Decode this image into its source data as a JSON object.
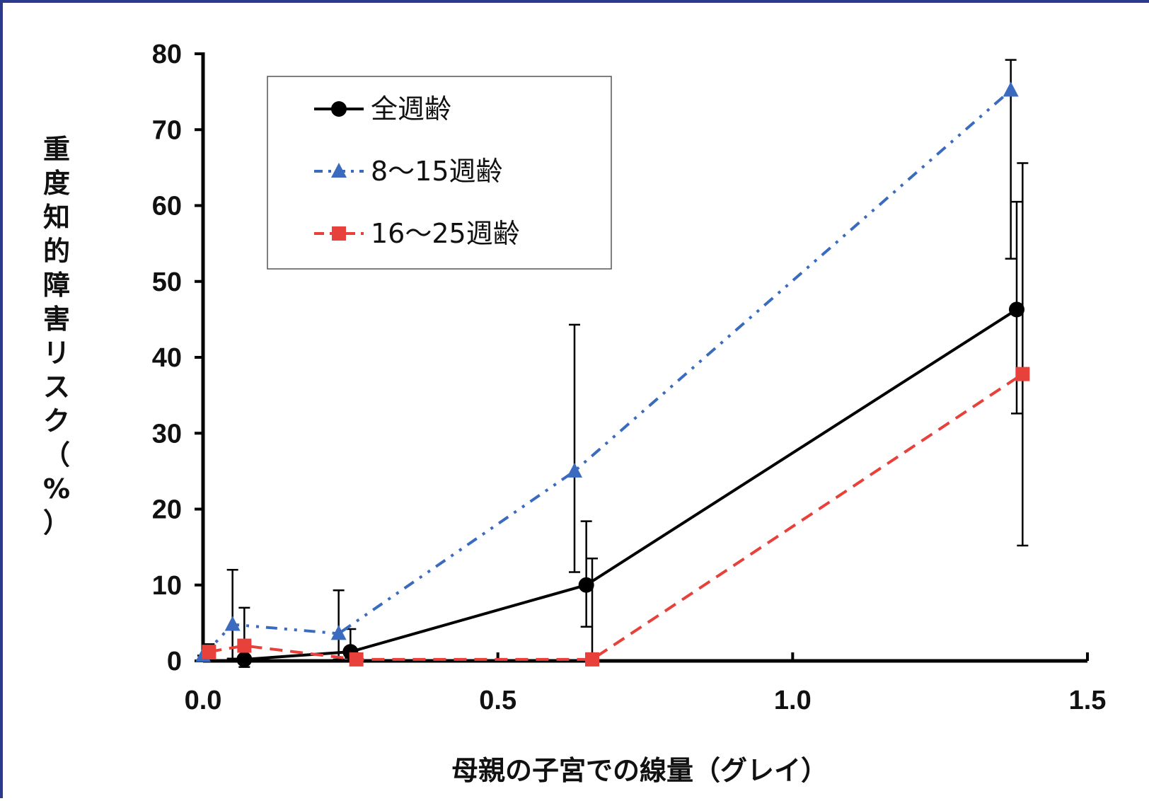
{
  "chart_data": {
    "type": "line",
    "xlabel": "母親の子宮での線量（グレイ）",
    "ylabel": "重度知的障害リスク（%）",
    "xlim": [
      0.0,
      1.5
    ],
    "ylim": [
      0,
      80
    ],
    "xticks": [
      "0.0",
      "0.5",
      "1.0",
      "1.5"
    ],
    "yticks": [
      "0",
      "10",
      "20",
      "30",
      "40",
      "50",
      "60",
      "70",
      "80"
    ],
    "legend_position": "top-left",
    "grid": false,
    "series": [
      {
        "name": "全週齢",
        "color": "#000000",
        "marker": "circle",
        "line_style": "solid",
        "x": [
          0.07,
          0.25,
          0.65,
          1.38
        ],
        "y": [
          0.2,
          1.2,
          10.0,
          46.3
        ],
        "err_low": [
          -0.8,
          0.4,
          4.5,
          32.6
        ],
        "err_high": [
          1.5,
          4.2,
          18.4,
          60.5
        ]
      },
      {
        "name": "8～15週齢",
        "color": "#3a6bbf",
        "marker": "triangle",
        "line_style": "dashdotdot",
        "x": [
          0.0,
          0.05,
          0.23,
          0.63,
          1.37
        ],
        "y": [
          0.7,
          4.8,
          3.6,
          25.0,
          75.2
        ],
        "err_low": [
          0.7,
          0.3,
          0.2,
          11.7,
          53.0
        ],
        "err_high": [
          0.7,
          12.0,
          9.3,
          44.3,
          79.2
        ]
      },
      {
        "name": "16～25週齢",
        "color": "#e8403a",
        "marker": "square",
        "line_style": "dashed",
        "x": [
          0.01,
          0.07,
          0.26,
          0.66,
          1.39
        ],
        "y": [
          1.2,
          2.0,
          0.2,
          0.2,
          37.8
        ],
        "err_low": [
          0.4,
          0.5,
          0.2,
          0.2,
          15.2
        ],
        "err_high": [
          2.2,
          7.0,
          0.2,
          13.5,
          65.6
        ]
      }
    ]
  }
}
